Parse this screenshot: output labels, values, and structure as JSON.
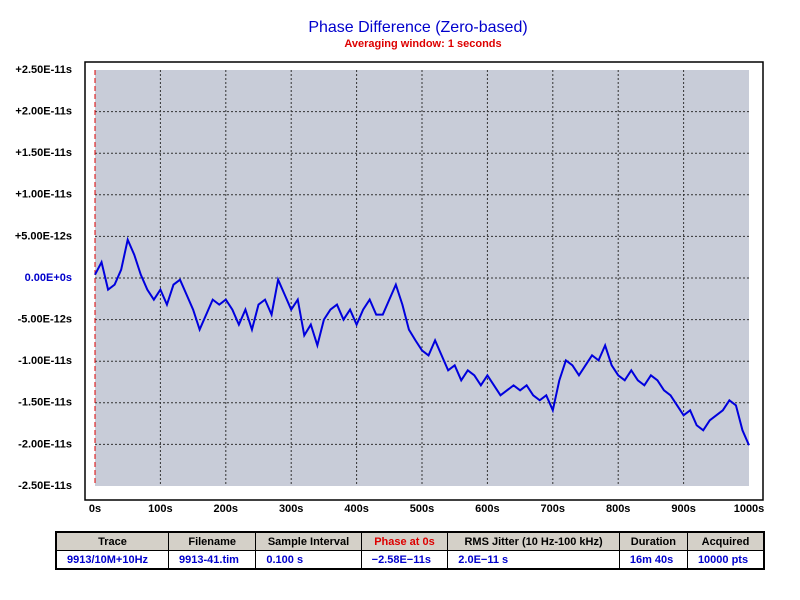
{
  "chart_data": {
    "type": "line",
    "title": "Phase Difference (Zero-based)",
    "subtitle": "Averaging window: 1 seconds",
    "x": [
      0,
      10,
      20,
      30,
      40,
      50,
      60,
      70,
      80,
      90,
      100,
      110,
      120,
      130,
      140,
      150,
      160,
      170,
      180,
      190,
      200,
      210,
      220,
      230,
      240,
      250,
      260,
      270,
      280,
      290,
      300,
      310,
      320,
      330,
      340,
      350,
      360,
      370,
      380,
      390,
      400,
      410,
      420,
      430,
      440,
      450,
      460,
      470,
      480,
      490,
      500,
      510,
      520,
      530,
      540,
      550,
      560,
      570,
      580,
      590,
      600,
      610,
      620,
      630,
      640,
      650,
      660,
      670,
      680,
      690,
      700,
      710,
      720,
      730,
      740,
      750,
      760,
      770,
      780,
      790,
      800,
      810,
      820,
      830,
      840,
      850,
      860,
      870,
      880,
      890,
      900,
      910,
      920,
      930,
      940,
      950,
      960,
      970,
      980,
      990,
      1000
    ],
    "series": [
      {
        "name": "9913/10M+10Hz",
        "color": "#0000dd",
        "values": [
          4e-13,
          1.9e-12,
          -1.4e-12,
          -8e-13,
          1e-12,
          4.6e-12,
          2.8e-12,
          4e-13,
          -1.4e-12,
          -2.6e-12,
          -1.4e-12,
          -3.2e-12,
          -8e-13,
          -2e-13,
          -2e-12,
          -3.8e-12,
          -6.2e-12,
          -4.4e-12,
          -2.6e-12,
          -3.2e-12,
          -2.6e-12,
          -3.8e-12,
          -5.6e-12,
          -3.8e-12,
          -6.2e-12,
          -3.2e-12,
          -2.6e-12,
          -4.4e-12,
          -2e-13,
          -2e-12,
          -3.8e-12,
          -2.6e-12,
          -6.9e-12,
          -5.6e-12,
          -8.1e-12,
          -5e-12,
          -3.8e-12,
          -3.2e-12,
          -5e-12,
          -3.8e-12,
          -5.6e-12,
          -3.8e-12,
          -2.6e-12,
          -4.4e-12,
          -4.4e-12,
          -2.6e-12,
          -8e-13,
          -3.2e-12,
          -6.2e-12,
          -7.5e-12,
          -8.7e-12,
          -9.3e-12,
          -7.5e-12,
          -9.3e-12,
          -1.11e-11,
          -1.05e-11,
          -1.23e-11,
          -1.11e-11,
          -1.17e-11,
          -1.29e-11,
          -1.17e-11,
          -1.29e-11,
          -1.41e-11,
          -1.35e-11,
          -1.29e-11,
          -1.35e-11,
          -1.29e-11,
          -1.41e-11,
          -1.47e-11,
          -1.41e-11,
          -1.59e-11,
          -1.23e-11,
          -9.9e-12,
          -1.05e-11,
          -1.17e-11,
          -1.05e-11,
          -9.3e-12,
          -9.9e-12,
          -8.1e-12,
          -1.05e-11,
          -1.17e-11,
          -1.23e-11,
          -1.11e-11,
          -1.23e-11,
          -1.29e-11,
          -1.17e-11,
          -1.23e-11,
          -1.35e-11,
          -1.41e-11,
          -1.53e-11,
          -1.65e-11,
          -1.59e-11,
          -1.77e-11,
          -1.83e-11,
          -1.71e-11,
          -1.65e-11,
          -1.59e-11,
          -1.47e-11,
          -1.53e-11,
          -1.83e-11,
          -2.01e-11
        ]
      }
    ],
    "xlim": [
      0,
      1000
    ],
    "xticks": [
      {
        "value": 0,
        "label": "0s"
      },
      {
        "value": 100,
        "label": "100s"
      },
      {
        "value": 200,
        "label": "200s"
      },
      {
        "value": 300,
        "label": "300s"
      },
      {
        "value": 400,
        "label": "400s"
      },
      {
        "value": 500,
        "label": "500s"
      },
      {
        "value": 600,
        "label": "600s"
      },
      {
        "value": 700,
        "label": "700s"
      },
      {
        "value": 800,
        "label": "800s"
      },
      {
        "value": 900,
        "label": "900s"
      },
      {
        "value": 1000,
        "label": "1000s"
      }
    ],
    "ylim": [
      -2.5e-11,
      2.5e-11
    ],
    "yticks": [
      {
        "value": 2.5e-11,
        "label": "+2.50E-11s"
      },
      {
        "value": 2e-11,
        "label": "+2.00E-11s"
      },
      {
        "value": 1.5e-11,
        "label": "+1.50E-11s"
      },
      {
        "value": 1e-11,
        "label": "+1.00E-11s"
      },
      {
        "value": 5e-12,
        "label": "+5.00E-12s"
      },
      {
        "value": 0,
        "label": "0.00E+0s"
      },
      {
        "value": -5e-12,
        "label": "-5.00E-12s"
      },
      {
        "value": -1e-11,
        "label": "-1.00E-11s"
      },
      {
        "value": -1.5e-11,
        "label": "-1.50E-11s"
      },
      {
        "value": -2e-11,
        "label": "-2.00E-11s"
      },
      {
        "value": -2.5e-11,
        "label": "-2.50E-11s"
      }
    ],
    "grid": true
  },
  "table": {
    "headers": [
      "Trace",
      "Filename",
      "Sample Interval",
      "Phase at 0s",
      "RMS Jitter (10 Hz-100 kHz)",
      "Duration",
      "Acquired"
    ],
    "rows": [
      [
        "9913/10M+10Hz",
        "9913-41.tim",
        "0.100 s",
        "−2.58E−11s",
        "2.0E−11 s",
        "16m 40s",
        "10000 pts"
      ]
    ]
  }
}
